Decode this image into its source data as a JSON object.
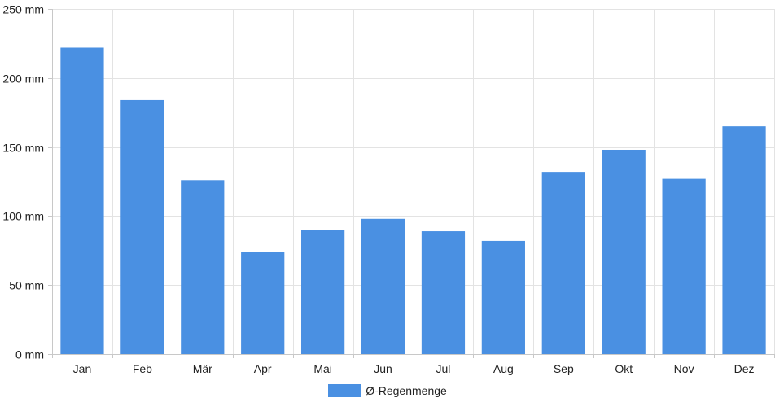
{
  "chart_data": {
    "type": "bar",
    "categories": [
      "Jan",
      "Feb",
      "Mär",
      "Apr",
      "Mai",
      "Jun",
      "Jul",
      "Aug",
      "Sep",
      "Okt",
      "Nov",
      "Dez"
    ],
    "series": [
      {
        "name": "Ø-Regenmenge",
        "values": [
          222,
          184,
          126,
          74,
          90,
          98,
          89,
          82,
          132,
          148,
          127,
          165
        ],
        "color": "#4a90e2"
      }
    ],
    "ylim": [
      0,
      250
    ],
    "yticks": [
      0,
      50,
      100,
      150,
      200,
      250
    ],
    "ytick_labels": [
      "0 mm",
      "50 mm",
      "100 mm",
      "150 mm",
      "200 mm",
      "250 mm"
    ],
    "grid": true,
    "legend_position": "bottom"
  }
}
